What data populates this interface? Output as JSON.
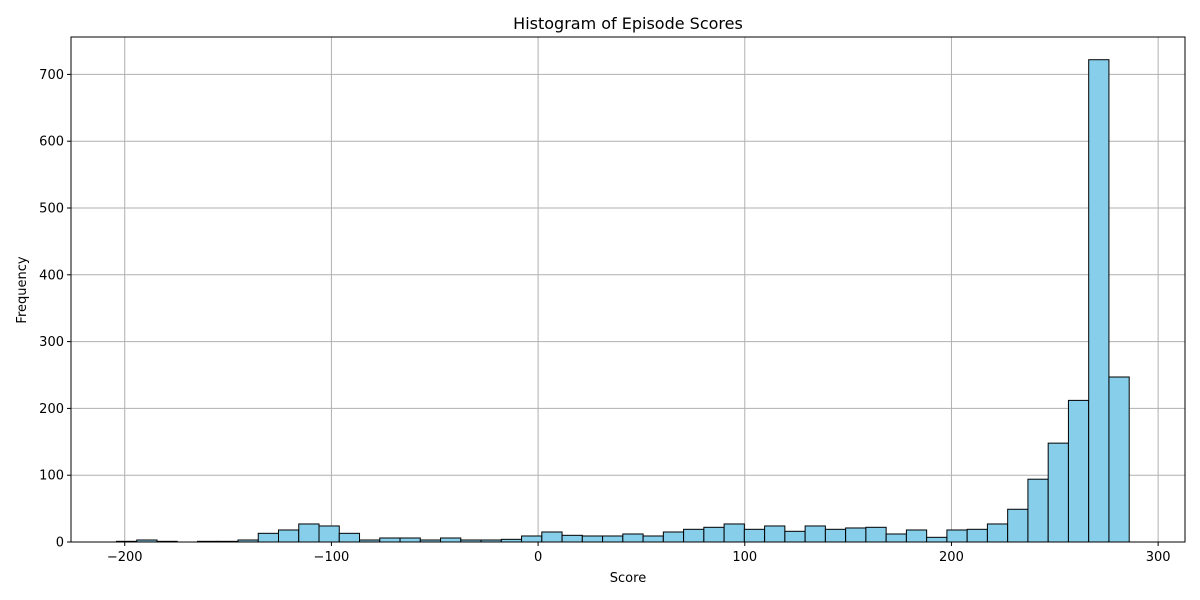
{
  "chart_data": {
    "type": "bar",
    "title": "Histogram of Episode Scores",
    "xlabel": "Score",
    "ylabel": "Frequency",
    "xlim": [
      -226,
      313
    ],
    "ylim": [
      0,
      756
    ],
    "xticks": [
      -200,
      -100,
      0,
      100,
      200,
      300
    ],
    "xtick_labels": [
      "−200",
      "−100",
      "0",
      "100",
      "200",
      "300"
    ],
    "yticks": [
      0,
      100,
      200,
      300,
      400,
      500,
      600,
      700
    ],
    "ytick_labels": [
      "0",
      "100",
      "200",
      "300",
      "400",
      "500",
      "600",
      "700"
    ],
    "grid": true,
    "bar_color": "#87CEEB",
    "edge_color": "#000000",
    "bin_edges": [
      -204,
      -194.2,
      -184.4,
      -174.6,
      -164.8,
      -155,
      -145.2,
      -135.4,
      -125.6,
      -115.8,
      -106,
      -96.2,
      -86.4,
      -76.6,
      -66.8,
      -57,
      -47.2,
      -37.4,
      -27.6,
      -17.8,
      -8,
      1.8,
      11.6,
      21.4,
      31.2,
      41,
      50.8,
      60.6,
      70.4,
      80.2,
      90,
      99.8,
      109.6,
      119.4,
      129.2,
      139,
      148.8,
      158.6,
      168.4,
      178.2,
      188,
      197.8,
      207.6,
      217.4,
      227.2,
      237,
      246.8,
      256.6,
      266.4,
      276.2,
      286
    ],
    "values": [
      1,
      3,
      1,
      0,
      1,
      1,
      3,
      13,
      18,
      27,
      24,
      13,
      3,
      6,
      6,
      3,
      6,
      3,
      3,
      4,
      9,
      15,
      10,
      9,
      9,
      12,
      9,
      15,
      19,
      22,
      27,
      19,
      24,
      16,
      24,
      19,
      21,
      22,
      12,
      18,
      7,
      18,
      19,
      27,
      49,
      94,
      148,
      212,
      722,
      247
    ]
  }
}
